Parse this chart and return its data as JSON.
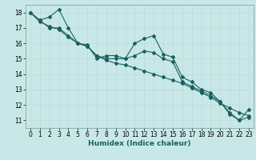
{
  "xlabel": "Humidex (Indice chaleur)",
  "bg_color": "#c8e8e8",
  "grid_color": "#c0d8d8",
  "line_color": "#1a6060",
  "xlim": [
    -0.5,
    23.5
  ],
  "ylim": [
    10.5,
    18.5
  ],
  "xticks": [
    0,
    1,
    2,
    3,
    4,
    5,
    6,
    7,
    8,
    9,
    10,
    11,
    12,
    13,
    14,
    15,
    16,
    17,
    18,
    19,
    20,
    21,
    22,
    23
  ],
  "yticks": [
    11,
    12,
    13,
    14,
    15,
    16,
    17,
    18
  ],
  "line1_x": [
    0,
    1,
    2,
    3,
    4,
    5,
    6,
    7,
    8,
    9,
    10,
    11,
    12,
    13,
    14,
    15,
    16,
    17,
    18,
    19,
    20,
    21,
    22,
    23
  ],
  "line1_y": [
    18.0,
    17.5,
    17.7,
    18.2,
    17.0,
    16.0,
    15.9,
    15.0,
    15.2,
    15.2,
    15.0,
    16.0,
    16.3,
    16.5,
    15.3,
    15.1,
    13.8,
    13.5,
    13.0,
    12.8,
    12.2,
    11.5,
    11.0,
    11.7
  ],
  "line2_x": [
    0,
    1,
    2,
    3,
    4,
    5,
    6,
    7,
    8,
    9,
    10,
    11,
    12,
    13,
    14,
    15,
    16,
    17,
    18,
    19,
    20,
    21,
    22,
    23
  ],
  "line2_y": [
    18.0,
    17.5,
    17.0,
    17.0,
    16.5,
    16.0,
    15.8,
    15.2,
    15.0,
    15.0,
    15.0,
    15.2,
    15.5,
    15.4,
    15.0,
    14.8,
    13.5,
    13.2,
    12.9,
    12.6,
    12.2,
    11.4,
    11.0,
    11.2
  ],
  "line3_x": [
    0,
    1,
    2,
    3,
    4,
    5,
    6,
    7,
    8,
    9,
    10,
    11,
    12,
    13,
    14,
    15,
    16,
    17,
    18,
    19,
    20,
    21,
    22,
    23
  ],
  "line3_y": [
    18.0,
    17.4,
    17.1,
    16.9,
    16.4,
    16.0,
    15.8,
    15.2,
    14.9,
    14.7,
    14.6,
    14.4,
    14.2,
    14.0,
    13.8,
    13.6,
    13.4,
    13.1,
    12.8,
    12.5,
    12.1,
    11.8,
    11.5,
    11.3
  ]
}
